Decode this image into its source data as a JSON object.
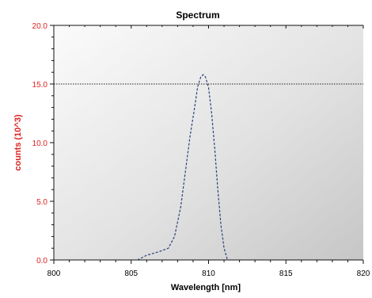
{
  "chart_data": {
    "type": "line",
    "title": "Spectrum",
    "xlabel": "Wavelength [nm]",
    "ylabel": "counts (10^3)",
    "xlim": [
      800,
      820
    ],
    "ylim": [
      0,
      20
    ],
    "x_ticks": [
      {
        "value": 800,
        "label": "800"
      },
      {
        "value": 805,
        "label": "805"
      },
      {
        "value": 810,
        "label": "810"
      },
      {
        "value": 815,
        "label": "815"
      },
      {
        "value": 820,
        "label": "820"
      }
    ],
    "y_ticks": [
      {
        "value": 0,
        "label": "0.0"
      },
      {
        "value": 5,
        "label": "5.0"
      },
      {
        "value": 10,
        "label": "10.0"
      },
      {
        "value": 15,
        "label": "15.0"
      },
      {
        "value": 20,
        "label": "20.0"
      }
    ],
    "reference_line": {
      "y": 15,
      "style": "dotted",
      "color": "#222222"
    },
    "series": [
      {
        "color": "#2b3f7a",
        "style": "dashed",
        "x": [
          805.4,
          806.0,
          806.8,
          807.4,
          807.8,
          808.2,
          808.5,
          808.8,
          809.1,
          809.3,
          809.5,
          809.65,
          809.8,
          810.0,
          810.2,
          810.4,
          810.6,
          810.8,
          811.0,
          811.2,
          811.3
        ],
        "y": [
          0.0,
          0.4,
          0.7,
          1.0,
          2.0,
          4.5,
          7.5,
          10.5,
          13.0,
          14.8,
          15.6,
          15.8,
          15.6,
          14.7,
          12.5,
          9.5,
          6.0,
          3.0,
          1.0,
          0.1,
          0.0
        ]
      }
    ],
    "grid": false,
    "colors": {
      "title": "#000000",
      "xlabel": "#000000",
      "ylabel": "#dd2222",
      "y_tick_labels": "#dd2222",
      "x_tick_labels": "#000000",
      "background_light": "#fafafa",
      "background_dark": "#c8c8c8"
    }
  }
}
